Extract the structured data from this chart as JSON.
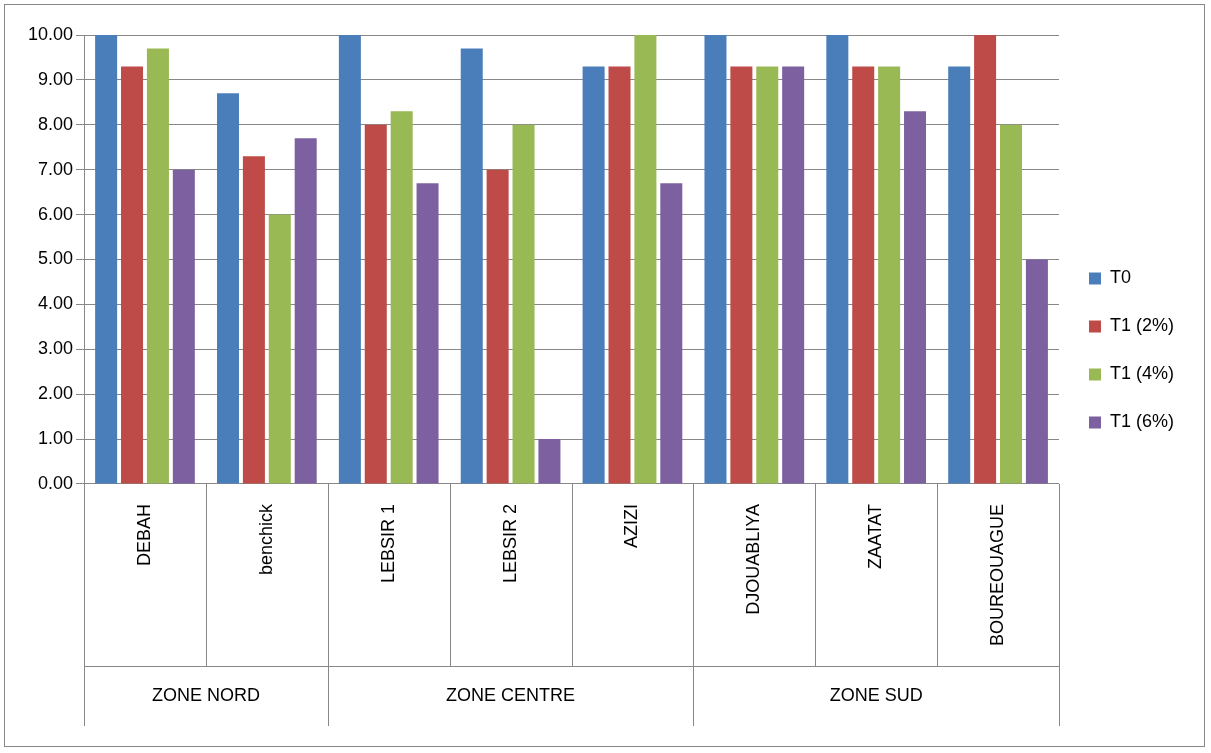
{
  "chart_data": {
    "type": "bar",
    "categories": [
      "DEBAH",
      "benchick",
      "LEBSIR 1",
      "LEBSIR 2",
      "AZIZI",
      "DJOUABLIYA",
      "ZAATAT",
      "BOUREOUAGUE"
    ],
    "series": [
      {
        "name": "T0",
        "color": "#4a7ebb",
        "values": [
          10,
          8.7,
          10,
          9.7,
          9.3,
          10,
          10,
          9.3
        ]
      },
      {
        "name": "T1 (2%)",
        "color": "#be4b48",
        "values": [
          9.3,
          7.3,
          8,
          7,
          9.3,
          9.3,
          9.3,
          10
        ]
      },
      {
        "name": "T1 (4%)",
        "color": "#98b954",
        "values": [
          9.7,
          6,
          8.3,
          8,
          10,
          9.3,
          9.3,
          8
        ]
      },
      {
        "name": "T1 (6%)",
        "color": "#7d60a0",
        "values": [
          7,
          7.7,
          6.7,
          1,
          6.7,
          9.3,
          8.3,
          5
        ]
      }
    ],
    "ylim": [
      0,
      10
    ],
    "yticks": [
      {
        "value": 0,
        "label": "0.00"
      },
      {
        "value": 1,
        "label": "1.00"
      },
      {
        "value": 2,
        "label": "2.00"
      },
      {
        "value": 3,
        "label": "3.00"
      },
      {
        "value": 4,
        "label": "4.00"
      },
      {
        "value": 5,
        "label": "5.00"
      },
      {
        "value": 6,
        "label": "6.00"
      },
      {
        "value": 7,
        "label": "7.00"
      },
      {
        "value": 8,
        "label": "8.00"
      },
      {
        "value": 9,
        "label": "9.00"
      },
      {
        "value": 10,
        "label": "10.00"
      }
    ],
    "grid": "y",
    "legend": "right",
    "annotations": [
      "ZONE NORD",
      "ZONE CENTRE",
      "ZONE SUD"
    ]
  }
}
